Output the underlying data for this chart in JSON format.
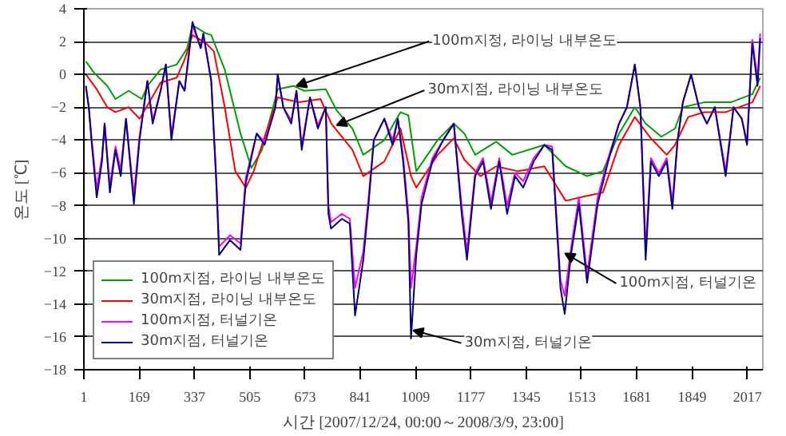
{
  "chart_data": {
    "type": "line",
    "xlabel": "시간 [2007/12/24, 00:00～2008/3/9, 23:00]",
    "ylabel": "온도 [℃]",
    "xlim": [
      1,
      2064
    ],
    "xticks": [
      1,
      169,
      337,
      505,
      673,
      841,
      1009,
      1177,
      1345,
      1513,
      1681,
      1849,
      2017
    ],
    "ylim": [
      -18,
      4
    ],
    "yticks": [
      -18,
      -16,
      -14,
      -12,
      -10,
      -8,
      -6,
      -4,
      -2,
      0,
      2,
      4
    ],
    "grid": "y",
    "legend": "bottom left",
    "line_style": "solid",
    "annotations": [
      {
        "text": "100m지정, 라이닝 내부온도",
        "x": 647,
        "y": -0.7
      },
      {
        "text": "30m지점, 라이닝 내부온도",
        "x": 769,
        "y": -3.1
      },
      {
        "text": "100m지점, 터널기온",
        "x": 1463,
        "y": -10.9
      },
      {
        "text": "30m지점, 터널기온",
        "x": 1002,
        "y": -15.6
      }
    ],
    "series": [
      {
        "name": "100m지점, 라이닝 내부온도",
        "color": "#00a000",
        "x": [
          7,
          32,
          72,
          97,
          137,
          177,
          194,
          234,
          283,
          315,
          331,
          372,
          388,
          429,
          477,
          510,
          542,
          590,
          639,
          671,
          736,
          769,
          817,
          850,
          914,
          963,
          987,
          1011,
          1076,
          1125,
          1157,
          1190,
          1254,
          1303,
          1400,
          1465,
          1530,
          1578,
          1627,
          1675,
          1708,
          1756,
          1797,
          1821,
          1886,
          1967,
          2032,
          2056
        ],
        "values": [
          0.8,
          0.1,
          -0.7,
          -1.5,
          -1.0,
          -1.5,
          -0.7,
          0.3,
          0.6,
          1.6,
          3.0,
          2.5,
          2.4,
          0.3,
          -3.6,
          -5.7,
          -4.6,
          -0.9,
          -0.7,
          -1.0,
          -0.9,
          -2.2,
          -3.3,
          -4.9,
          -4.0,
          -2.3,
          -2.5,
          -5.9,
          -4.0,
          -3.0,
          -3.6,
          -4.9,
          -4.1,
          -4.9,
          -4.3,
          -5.6,
          -6.2,
          -5.9,
          -3.6,
          -2.0,
          -3.0,
          -3.8,
          -3.3,
          -2.0,
          -1.7,
          -1.7,
          -1.2,
          -0.2
        ]
      },
      {
        "name": "30m지점, 라이닝 내부온도",
        "color": "#ff0000",
        "x": [
          7,
          40,
          72,
          97,
          137,
          170,
          194,
          234,
          283,
          307,
          331,
          372,
          396,
          429,
          461,
          493,
          517,
          542,
          590,
          655,
          720,
          753,
          817,
          850,
          914,
          963,
          995,
          1011,
          1076,
          1125,
          1157,
          1206,
          1254,
          1319,
          1400,
          1465,
          1530,
          1578,
          1627,
          1675,
          1724,
          1772,
          1797,
          1837,
          1886,
          1951,
          2032,
          2056
        ],
        "values": [
          0.0,
          -0.9,
          -2.0,
          -2.3,
          -2.0,
          -2.7,
          -1.9,
          -0.5,
          -0.2,
          0.9,
          2.4,
          1.9,
          1.4,
          -2.0,
          -5.9,
          -6.9,
          -5.9,
          -4.3,
          -1.4,
          -1.7,
          -1.5,
          -3.0,
          -4.6,
          -6.2,
          -5.3,
          -3.3,
          -6.2,
          -6.9,
          -4.9,
          -3.9,
          -5.2,
          -6.2,
          -5.6,
          -5.9,
          -5.6,
          -7.7,
          -7.4,
          -7.2,
          -4.3,
          -2.6,
          -3.9,
          -4.9,
          -4.3,
          -2.6,
          -2.3,
          -2.3,
          -1.7,
          -0.7
        ]
      },
      {
        "name": "100m지점, 터널기온",
        "color": "#ff00ff",
        "x": [
          7,
          16,
          24,
          40,
          56,
          64,
          80,
          97,
          113,
          129,
          153,
          170,
          194,
          210,
          234,
          250,
          267,
          291,
          307,
          331,
          356,
          364,
          388,
          404,
          412,
          445,
          477,
          493,
          526,
          550,
          583,
          590,
          607,
          631,
          647,
          663,
          688,
          712,
          736,
          744,
          752,
          785,
          809,
          825,
          850,
          866,
          882,
          914,
          939,
          955,
          971,
          987,
          995,
          1011,
          1027,
          1060,
          1093,
          1125,
          1149,
          1165,
          1190,
          1214,
          1238,
          1263,
          1287,
          1311,
          1336,
          1368,
          1400,
          1424,
          1449,
          1462,
          1481,
          1505,
          1530,
          1562,
          1594,
          1627,
          1651,
          1675,
          1692,
          1708,
          1724,
          1748,
          1772,
          1789,
          1805,
          1821,
          1846,
          1870,
          1894,
          1918,
          1951,
          1975,
          2000,
          2016,
          2032,
          2048,
          2056
        ],
        "values": [
          -0.7,
          -2.0,
          -3.8,
          -7.0,
          -5.0,
          -3.0,
          -6.8,
          -4.4,
          -5.8,
          -2.7,
          -7.4,
          -3.8,
          -0.4,
          -2.8,
          -1.0,
          0.6,
          -3.7,
          -0.4,
          -1.0,
          3.0,
          1.6,
          2.4,
          -0.4,
          -6.5,
          -10.5,
          -9.8,
          -10.3,
          -6.3,
          -3.6,
          -4.1,
          -2.0,
          0.0,
          -2.0,
          -2.8,
          -1.0,
          -4.3,
          -1.4,
          -3.1,
          -2.0,
          -8.0,
          -9.0,
          -8.5,
          -8.8,
          -13.0,
          -10.8,
          -7.5,
          -4.0,
          -2.7,
          -4.0,
          -2.7,
          -5.0,
          -8.5,
          -13.0,
          -10.5,
          -7.5,
          -5.1,
          -4.0,
          -3.0,
          -8.0,
          -10.8,
          -6.0,
          -5.1,
          -7.8,
          -5.1,
          -8.0,
          -6.0,
          -6.5,
          -5.1,
          -4.3,
          -4.4,
          -12.5,
          -13.5,
          -10.6,
          -7.5,
          -12.2,
          -7.5,
          -5.1,
          -3.0,
          -2.0,
          0.6,
          -2.0,
          -10.6,
          -5.1,
          -6.0,
          -5.1,
          -7.8,
          -4.0,
          -1.7,
          0.0,
          -2.0,
          -3.0,
          -2.0,
          -5.9,
          -2.0,
          -2.7,
          -4.1,
          2.1,
          -0.3,
          2.5
        ]
      },
      {
        "name": "30m지점, 터널기온",
        "color": "#000080",
        "x": [
          7,
          16,
          24,
          40,
          56,
          64,
          80,
          97,
          113,
          129,
          153,
          170,
          194,
          210,
          234,
          250,
          267,
          291,
          307,
          331,
          356,
          364,
          388,
          404,
          412,
          445,
          477,
          493,
          526,
          550,
          583,
          590,
          607,
          631,
          647,
          663,
          688,
          712,
          736,
          744,
          752,
          785,
          809,
          825,
          850,
          866,
          882,
          914,
          939,
          955,
          971,
          987,
          995,
          1011,
          1027,
          1060,
          1093,
          1125,
          1149,
          1165,
          1190,
          1214,
          1238,
          1263,
          1287,
          1311,
          1336,
          1368,
          1400,
          1424,
          1449,
          1462,
          1481,
          1505,
          1530,
          1562,
          1594,
          1627,
          1651,
          1675,
          1692,
          1708,
          1724,
          1748,
          1772,
          1789,
          1805,
          1821,
          1846,
          1870,
          1894,
          1918,
          1951,
          1975,
          2000,
          2016,
          2032,
          2048,
          2056
        ],
        "values": [
          -0.7,
          -2.0,
          -4.0,
          -7.5,
          -5.3,
          -3.0,
          -7.2,
          -4.6,
          -6.2,
          -2.7,
          -7.9,
          -4.0,
          -0.4,
          -3.0,
          -1.0,
          0.6,
          -4.0,
          -0.4,
          -1.0,
          3.2,
          1.6,
          2.5,
          -0.4,
          -6.9,
          -11.0,
          -10.1,
          -10.7,
          -6.6,
          -3.6,
          -4.3,
          -2.0,
          0.0,
          -2.0,
          -3.0,
          -1.0,
          -4.6,
          -1.4,
          -3.3,
          -2.0,
          -8.5,
          -9.4,
          -8.8,
          -9.1,
          -14.7,
          -11.3,
          -7.9,
          -4.0,
          -2.7,
          -4.3,
          -2.7,
          -5.3,
          -9.0,
          -16.1,
          -11.0,
          -7.9,
          -5.3,
          -4.0,
          -3.0,
          -8.5,
          -11.3,
          -6.2,
          -5.3,
          -8.2,
          -5.3,
          -8.5,
          -6.2,
          -6.9,
          -5.3,
          -4.3,
          -4.6,
          -13.0,
          -14.6,
          -11.0,
          -7.9,
          -12.7,
          -7.9,
          -5.3,
          -3.0,
          -2.0,
          0.6,
          -2.0,
          -11.3,
          -5.3,
          -6.2,
          -5.3,
          -8.2,
          -4.0,
          -1.7,
          0.0,
          -2.0,
          -3.0,
          -2.0,
          -6.2,
          -2.0,
          -2.7,
          -4.3,
          1.9,
          -0.7,
          2.2
        ]
      }
    ]
  }
}
